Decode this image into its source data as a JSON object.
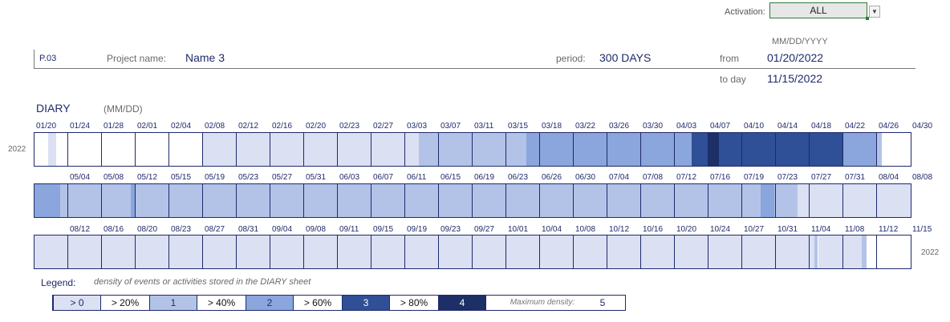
{
  "activation": {
    "label": "Activation:",
    "value": "ALL"
  },
  "header": {
    "project_code": "P.03",
    "project_name_label": "Project name:",
    "project_name": "Name 3",
    "period_label": "period:",
    "period_value": "300 DAYS",
    "date_format": "MM/DD/YYYY",
    "from_label": "from",
    "from_date": "01/20/2022",
    "to_label": "to day",
    "to_date": "11/15/2022"
  },
  "diary": {
    "title": "DIARY",
    "format": "(MM/DD)",
    "year_start": "2022",
    "year_end": "2022",
    "rows": [
      {
        "labels": [
          "01/20",
          "01/24",
          "01/28",
          "02/01",
          "02/04",
          "02/08",
          "02/12",
          "02/16",
          "02/20",
          "02/23",
          "02/27",
          "03/03",
          "03/07",
          "03/11",
          "03/15",
          "03/18",
          "03/22",
          "03/26",
          "03/30",
          "04/03",
          "04/07",
          "04/10",
          "04/14",
          "04/18",
          "04/22",
          "04/26",
          "04/30"
        ],
        "segments": [
          {
            "from": 0,
            "to": 0.4,
            "level": 0
          },
          {
            "from": 0.4,
            "to": 0.65,
            "level": 1
          },
          {
            "from": 0.65,
            "to": 5,
            "level": 0
          },
          {
            "from": 5,
            "to": 11.4,
            "level": 1
          },
          {
            "from": 11.4,
            "to": 14.6,
            "level": 2
          },
          {
            "from": 14.6,
            "to": 19,
            "level": 3
          },
          {
            "from": 19,
            "to": 19.5,
            "level": 3
          },
          {
            "from": 19.5,
            "to": 20,
            "level": 4
          },
          {
            "from": 20,
            "to": 20.3,
            "level": 5
          },
          {
            "from": 20.3,
            "to": 24,
            "level": 4
          },
          {
            "from": 24,
            "to": 25,
            "level": 3
          },
          {
            "from": 25,
            "to": 25.15,
            "level": 2
          }
        ]
      },
      {
        "labels": [
          "",
          "05/04",
          "05/08",
          "05/12",
          "05/15",
          "05/19",
          "05/23",
          "05/27",
          "05/31",
          "06/03",
          "06/07",
          "06/11",
          "06/15",
          "06/19",
          "06/23",
          "06/26",
          "06/30",
          "07/04",
          "07/08",
          "07/12",
          "07/16",
          "07/19",
          "07/23",
          "07/27",
          "07/31",
          "08/04",
          "08/08"
        ],
        "segments": [
          {
            "from": 0,
            "to": 0.75,
            "level": 3
          },
          {
            "from": 0.75,
            "to": 2.85,
            "level": 2
          },
          {
            "from": 2.85,
            "to": 3,
            "level": 3
          },
          {
            "from": 3,
            "to": 21.55,
            "level": 2
          },
          {
            "from": 21.55,
            "to": 21.95,
            "level": 3
          },
          {
            "from": 21.95,
            "to": 22.65,
            "level": 2
          },
          {
            "from": 22.65,
            "to": 27,
            "level": 1
          }
        ]
      },
      {
        "labels": [
          "",
          "08/12",
          "08/16",
          "08/20",
          "08/23",
          "08/27",
          "08/31",
          "09/04",
          "09/08",
          "09/11",
          "09/15",
          "09/19",
          "09/23",
          "09/27",
          "10/01",
          "10/04",
          "10/08",
          "10/12",
          "10/16",
          "10/20",
          "10/24",
          "10/27",
          "10/31",
          "11/04",
          "11/08",
          "11/12",
          "11/15"
        ],
        "segments": [
          {
            "from": 0,
            "to": 23.15,
            "level": 1
          },
          {
            "from": 23.15,
            "to": 23.25,
            "level": 2
          },
          {
            "from": 23.25,
            "to": 24.55,
            "level": 1
          },
          {
            "from": 24.55,
            "to": 24.7,
            "level": 2
          },
          {
            "from": 24.7,
            "to": 26,
            "level": 0
          }
        ]
      }
    ]
  },
  "legend": {
    "title": "Legend:",
    "description": "density of events or activities stored in the DIARY sheet",
    "items": [
      {
        "label": "> 0",
        "shaded": true,
        "text_color": "#1f2a6b"
      },
      {
        "label": "> 20%",
        "shaded": false,
        "text_color": "#111111"
      },
      {
        "label": "1",
        "shaded": true,
        "text_color": "#1f2a6b"
      },
      {
        "label": "> 40%",
        "shaded": false,
        "text_color": "#111111"
      },
      {
        "label": "2",
        "shaded": true,
        "text_color": "#1f2a6b"
      },
      {
        "label": "> 60%",
        "shaded": false,
        "text_color": "#111111"
      },
      {
        "label": "3",
        "shaded": true,
        "text_color": "#ffffff"
      },
      {
        "label": "> 80%",
        "shaded": false,
        "text_color": "#111111"
      },
      {
        "label": "4",
        "shaded": true,
        "text_color": "#ffffff"
      }
    ],
    "max_label": "Maximum density:",
    "max_value": "5"
  },
  "colors": {
    "level_0": "#ffffff",
    "level_1": "#dbe0f3",
    "level_2": "#b3c3e8",
    "level_3": "#8aa6dc",
    "level_4": "#2f4f96",
    "level_5": "#1c2f66",
    "border": "#1f2a6b"
  }
}
